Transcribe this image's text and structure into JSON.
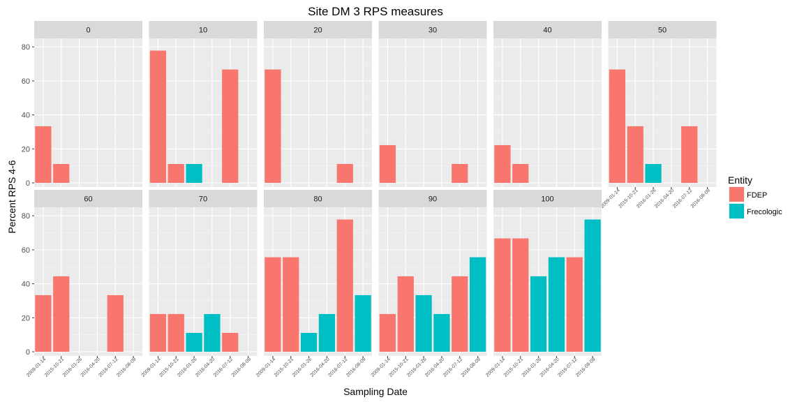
{
  "chart_data": {
    "type": "bar",
    "title": "Site DM 3 RPS measures",
    "xlabel": "Sampling Date",
    "ylabel": "Percent RPS 4-6",
    "ylim": [
      0,
      85
    ],
    "yticks": [
      0,
      20,
      40,
      60,
      80
    ],
    "grid": true,
    "legend": {
      "title": "Entity",
      "placement": "right",
      "entries": [
        {
          "name": "FDEP",
          "color": "#F8766D"
        },
        {
          "name": "Frecologic",
          "color": "#00BFC4"
        }
      ]
    },
    "categories": [
      "2009-01-14",
      "2015-10-21",
      "2016-01-26",
      "2016-04-20",
      "2016-07-12",
      "2016-08-09"
    ],
    "entity_by_category": [
      "FDEP",
      "FDEP",
      "Frecologic",
      "Frecologic",
      "FDEP",
      "Frecologic"
    ],
    "facets": [
      {
        "label": "0",
        "values": [
          33.3,
          11.1,
          null,
          null,
          null,
          null
        ]
      },
      {
        "label": "10",
        "values": [
          77.8,
          11.1,
          11.1,
          null,
          66.7,
          null
        ]
      },
      {
        "label": "20",
        "values": [
          66.7,
          null,
          null,
          null,
          11.1,
          null
        ]
      },
      {
        "label": "30",
        "values": [
          22.2,
          null,
          null,
          null,
          11.1,
          null
        ]
      },
      {
        "label": "40",
        "values": [
          22.2,
          11.1,
          null,
          null,
          null,
          null
        ]
      },
      {
        "label": "50",
        "values": [
          66.7,
          33.3,
          11.1,
          null,
          33.3,
          null
        ]
      },
      {
        "label": "60",
        "values": [
          33.3,
          44.4,
          null,
          null,
          33.3,
          null
        ]
      },
      {
        "label": "70",
        "values": [
          22.2,
          22.2,
          11.1,
          22.2,
          11.1,
          null
        ]
      },
      {
        "label": "80",
        "values": [
          55.6,
          55.6,
          11.1,
          22.2,
          77.8,
          33.3
        ]
      },
      {
        "label": "90",
        "values": [
          22.2,
          44.4,
          33.3,
          22.2,
          44.4,
          55.6
        ]
      },
      {
        "label": "100",
        "values": [
          66.7,
          66.7,
          44.4,
          55.6,
          55.6,
          77.8
        ]
      }
    ]
  }
}
